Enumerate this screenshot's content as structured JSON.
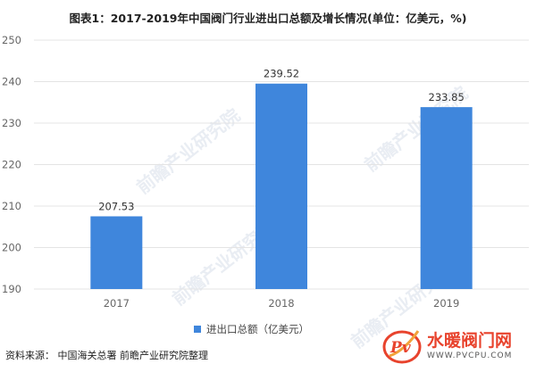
{
  "title": "图表1：2017-2019年中国阀门行业进出口总额及增长情况(单位：亿美元，%)",
  "source": "资料来源： 中国海关总署 前瞻产业研究院整理",
  "watermark": "前瞻产业研究院",
  "logo": {
    "main": "水暖阀门网",
    "sub": "WWW.PVCPU.COM",
    "glyph": "Pv"
  },
  "colors": {
    "bar": "#3f86dc",
    "grid": "#e4e4e4",
    "logo_red": "#e8432d"
  },
  "chart_data": {
    "type": "bar",
    "categories": [
      "2017",
      "2018",
      "2019"
    ],
    "series": [
      {
        "name": "进出口总额（亿美元）",
        "values": [
          207.53,
          239.52,
          233.85
        ]
      }
    ],
    "data_labels": [
      "207.53",
      "239.52",
      "233.85"
    ],
    "yticks": [
      "190",
      "200",
      "210",
      "220",
      "230",
      "240",
      "250"
    ],
    "ylim": [
      190,
      250
    ],
    "grid": true,
    "legend_position": "bottom"
  }
}
